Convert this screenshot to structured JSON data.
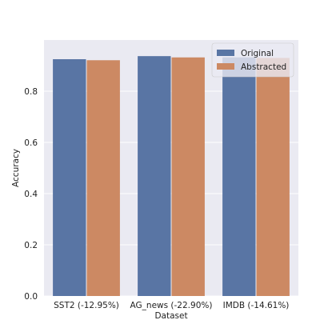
{
  "chart_data": {
    "type": "bar",
    "title": "",
    "xlabel": "Dataset",
    "ylabel": "Accuracy",
    "categories": [
      "SST2 (-12.95%)",
      "AG_news (-22.90%)",
      "IMDB (-14.61%)"
    ],
    "series": [
      {
        "name": "Original",
        "values": [
          0.925,
          0.937,
          0.932
        ],
        "color": "#5975a4"
      },
      {
        "name": "Abstracted",
        "values": [
          0.921,
          0.932,
          0.93
        ],
        "color": "#cc8963"
      }
    ],
    "ylim": [
      0,
      1.0
    ],
    "yticks": [
      0.0,
      0.2,
      0.4,
      0.6,
      0.8
    ],
    "ytick_labels": [
      "0.0",
      "0.2",
      "0.4",
      "0.6",
      "0.8"
    ],
    "grid": true,
    "legend_position": "top-right",
    "style": {
      "plot_background": "#eaeaf2",
      "grid_color": "#ffffff"
    }
  }
}
